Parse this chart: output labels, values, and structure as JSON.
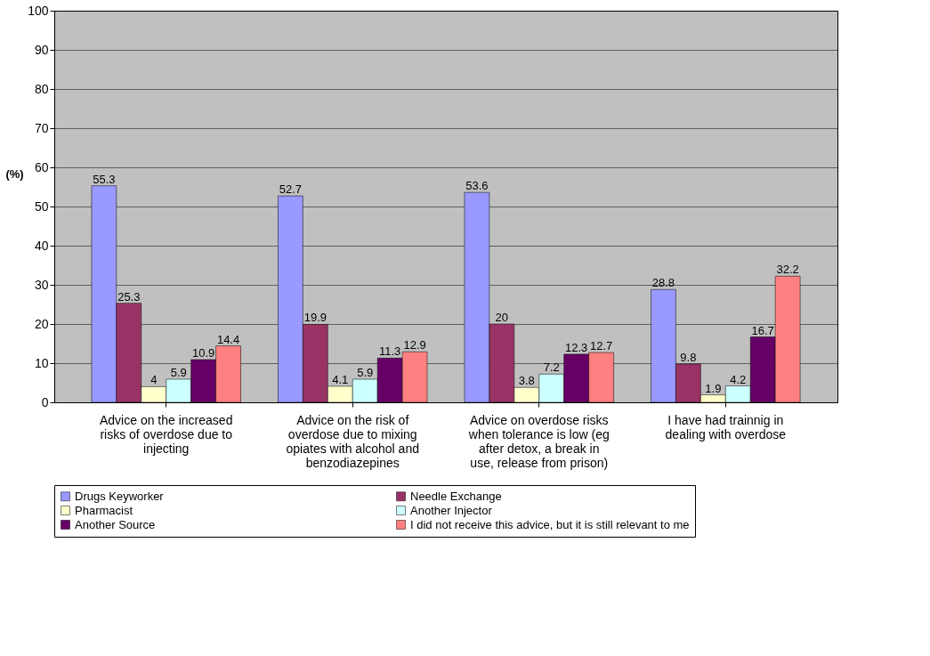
{
  "chart_data": {
    "type": "bar",
    "ylabel": "(%)",
    "categories": [
      "Advice on the increased risks of overdose due to injecting",
      "Advice on the risk of overdose due to mixing opiates with alcohol and benzodiazepines",
      "Advice on overdose risks when tolerance is low (eg after detox, a break in use, release from prison)",
      "I have had trainnig in dealing with overdose"
    ],
    "series": [
      {
        "name": "Drugs Keyworker",
        "color": "#9999ff",
        "values": [
          55.3,
          52.7,
          53.6,
          28.8
        ]
      },
      {
        "name": "Needle Exchange",
        "color": "#993366",
        "values": [
          25.3,
          19.9,
          20,
          9.8
        ]
      },
      {
        "name": "Pharmacist",
        "color": "#ffffcc",
        "values": [
          4,
          4.1,
          3.8,
          1.9
        ]
      },
      {
        "name": "Another Injector",
        "color": "#ccffff",
        "values": [
          5.9,
          5.9,
          7.2,
          4.2
        ]
      },
      {
        "name": "Another Source",
        "color": "#660066",
        "values": [
          10.9,
          11.3,
          12.3,
          16.7
        ]
      },
      {
        "name": "I did not receive this advice, but it is still relevant to me",
        "color": "#ff8080",
        "values": [
          14.4,
          12.9,
          12.7,
          32.2
        ]
      }
    ],
    "ylim": [
      0,
      100
    ],
    "yticks": [
      0,
      10,
      20,
      30,
      40,
      50,
      60,
      70,
      80,
      90,
      100
    ],
    "grid": "y",
    "legend": "bottom",
    "data_labels": true
  }
}
